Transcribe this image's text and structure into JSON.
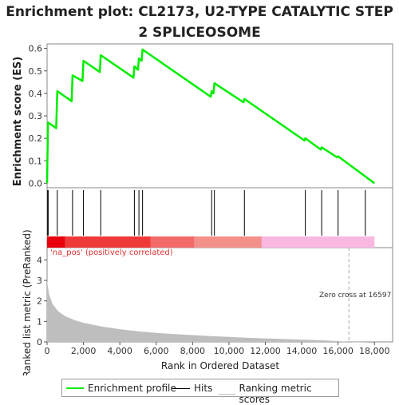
{
  "chart_data": {
    "type": "line",
    "title": "Enrichment plot: CL2173, U2-TYPE CATALYTIC STEP 2 SPLICEOSOME",
    "es_panel": {
      "ylabel": "Enrichment score (ES)",
      "ylim": [
        -0.02,
        0.62
      ],
      "yticks": [
        0.0,
        0.1,
        0.2,
        0.3,
        0.4,
        0.5,
        0.6
      ],
      "ytick_labels": [
        "0.0",
        "0.1",
        "0.2",
        "0.3",
        "0.4",
        "0.5",
        "0.6"
      ],
      "series": [
        {
          "name": "Enrichment profile",
          "color": "#00ee00",
          "x": [
            0,
            50,
            60,
            500,
            560,
            1350,
            1400,
            1950,
            2000,
            2900,
            2950,
            4750,
            4800,
            5000,
            5050,
            5200,
            5250,
            9000,
            9050,
            9150,
            9200,
            10800,
            10850,
            14150,
            14200,
            15050,
            15100,
            15950,
            16000,
            18000
          ],
          "y": [
            0.0,
            0.26,
            0.27,
            0.245,
            0.41,
            0.365,
            0.48,
            0.455,
            0.545,
            0.495,
            0.57,
            0.47,
            0.52,
            0.505,
            0.555,
            0.545,
            0.595,
            0.385,
            0.41,
            0.4,
            0.445,
            0.36,
            0.375,
            0.19,
            0.2,
            0.15,
            0.16,
            0.115,
            0.12,
            0.0
          ]
        }
      ]
    },
    "hits": {
      "name": "Hits",
      "color": "#000000",
      "positions": [
        30,
        60,
        560,
        1400,
        2000,
        2950,
        4800,
        5050,
        5250,
        9050,
        9200,
        10850,
        14200,
        15100,
        16000,
        17500
      ]
    },
    "ranking_bar": {
      "segments": [
        {
          "start": 0,
          "end": 1000,
          "color": "#e8000e"
        },
        {
          "start": 1000,
          "end": 5700,
          "color": "#f03a3a"
        },
        {
          "start": 5700,
          "end": 8100,
          "color": "#f26a6a"
        },
        {
          "start": 8100,
          "end": 11800,
          "color": "#f4908a"
        },
        {
          "start": 11800,
          "end": 18000,
          "color": "#f8b8e0"
        }
      ]
    },
    "metric_panel": {
      "ylabel": "Ranked list metric (PreRanked)",
      "ylim": [
        0,
        4.6
      ],
      "yticks": [
        0,
        1,
        2,
        3,
        4
      ],
      "ytick_labels": [
        "0",
        "1",
        "2",
        "3",
        "4"
      ],
      "positive_label": "'na_pos' (positively correlated)",
      "zero_cross_label": "Zero cross at 16597",
      "zero_cross": 16597,
      "series": [
        {
          "name": "Ranking metric scores",
          "color": "#bebebe",
          "x": [
            0,
            100,
            300,
            600,
            1000,
            1500,
            2000,
            3000,
            4000,
            5000,
            6000,
            7000,
            8000,
            9000,
            10000,
            11000,
            12000,
            13000,
            14000,
            15000,
            16000,
            16597,
            17000,
            18000
          ],
          "y": [
            3.0,
            2.35,
            1.85,
            1.5,
            1.25,
            1.07,
            0.93,
            0.75,
            0.62,
            0.52,
            0.44,
            0.38,
            0.33,
            0.28,
            0.24,
            0.2,
            0.17,
            0.14,
            0.11,
            0.08,
            0.04,
            0.0,
            -0.02,
            -0.05
          ]
        }
      ]
    },
    "xaxis": {
      "xlabel": "Rank in Ordered Dataset",
      "xlim": [
        0,
        19000
      ],
      "xticks": [
        0,
        2000,
        4000,
        6000,
        8000,
        10000,
        12000,
        14000,
        16000,
        18000
      ],
      "xtick_labels": [
        "0",
        "2,000",
        "4,000",
        "6,000",
        "8,000",
        "10,000",
        "12,000",
        "14,000",
        "16,000",
        "18,000"
      ]
    },
    "legend": {
      "placement": "bottom",
      "entries": [
        "Enrichment profile",
        "Hits",
        "Ranking metric scores"
      ]
    }
  }
}
